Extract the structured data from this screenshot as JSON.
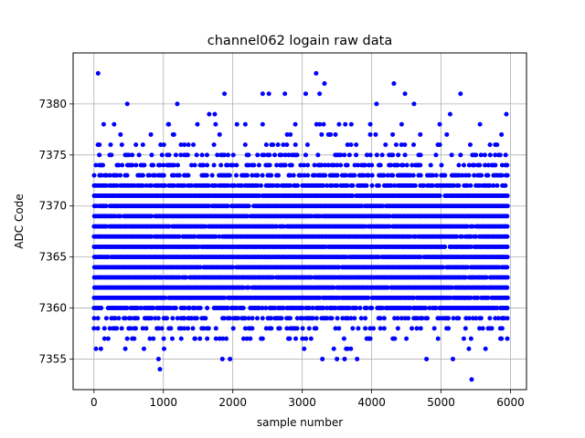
{
  "chart_data": {
    "type": "scatter",
    "title": "channel062 logain raw data",
    "xlabel": "sample number",
    "ylabel": "ADC Code",
    "xlim": [
      -300,
      6230
    ],
    "ylim": [
      7352,
      7385
    ],
    "x_ticks": [
      0,
      1000,
      2000,
      3000,
      4000,
      5000,
      6000
    ],
    "y_ticks": [
      7355,
      7360,
      7365,
      7370,
      7375,
      7380
    ],
    "grid": true,
    "marker_color": "#0000ff",
    "series": [
      {
        "name": "",
        "x_range": [
          0,
          5950
        ],
        "dense_band": [
          7361,
          7371
        ],
        "points": [
          [
            60,
            7383
          ],
          [
            480,
            7380
          ],
          [
            1200,
            7380
          ],
          [
            1880,
            7381
          ],
          [
            2430,
            7381
          ],
          [
            2520,
            7381
          ],
          [
            2750,
            7381
          ],
          [
            3050,
            7381
          ],
          [
            3200,
            7383
          ],
          [
            3250,
            7381
          ],
          [
            3320,
            7382
          ],
          [
            4320,
            7382
          ],
          [
            4480,
            7381
          ],
          [
            4070,
            7380
          ],
          [
            4610,
            7380
          ],
          [
            5280,
            7381
          ],
          [
            5940,
            7379
          ],
          [
            5130,
            7379
          ],
          [
            1660,
            7379
          ],
          [
            1740,
            7379
          ],
          [
            140,
            7378
          ],
          [
            290,
            7378
          ],
          [
            1070,
            7378
          ],
          [
            1490,
            7378
          ],
          [
            2060,
            7378
          ],
          [
            2180,
            7378
          ],
          [
            2900,
            7378
          ],
          [
            3530,
            7378
          ],
          [
            3620,
            7378
          ],
          [
            3980,
            7378
          ],
          [
            4980,
            7378
          ],
          [
            5560,
            7378
          ],
          [
            820,
            7377
          ],
          [
            1140,
            7377
          ],
          [
            1810,
            7377
          ],
          [
            3400,
            7377
          ],
          [
            4700,
            7377
          ],
          [
            5870,
            7377
          ],
          [
            240,
            7376
          ],
          [
            960,
            7376
          ],
          [
            1360,
            7376
          ],
          [
            2650,
            7376
          ],
          [
            4200,
            7376
          ],
          [
            5420,
            7376
          ],
          [
            5780,
            7376
          ],
          [
            930,
            7355
          ],
          [
            1960,
            7355
          ],
          [
            1850,
            7355
          ],
          [
            3290,
            7355
          ],
          [
            3610,
            7355
          ],
          [
            3500,
            7355
          ],
          [
            3790,
            7355
          ],
          [
            4790,
            7355
          ],
          [
            5170,
            7355
          ],
          [
            950,
            7354
          ],
          [
            5440,
            7353
          ],
          [
            100,
            7356
          ],
          [
            720,
            7356
          ],
          [
            1010,
            7356
          ],
          [
            3700,
            7356
          ],
          [
            5400,
            7356
          ],
          [
            5640,
            7356
          ],
          [
            1450,
            7357
          ],
          [
            1810,
            7357
          ],
          [
            2820,
            7357
          ],
          [
            3980,
            7357
          ],
          [
            4500,
            7357
          ],
          [
            5870,
            7357
          ],
          [
            0,
            7358
          ],
          [
            400,
            7358
          ],
          [
            2180,
            7358
          ],
          [
            3100,
            7358
          ],
          [
            4650,
            7358
          ],
          [
            5600,
            7358
          ],
          [
            1300,
            7359
          ],
          [
            2550,
            7359
          ],
          [
            3850,
            7359
          ],
          [
            5100,
            7359
          ],
          [
            5900,
            7359
          ],
          [
            1150,
            7360
          ],
          [
            2300,
            7360
          ],
          [
            3400,
            7360
          ],
          [
            4400,
            7360
          ],
          [
            5700,
            7360
          ]
        ],
        "seed_points_per_sample_level": "deterministic"
      }
    ]
  }
}
